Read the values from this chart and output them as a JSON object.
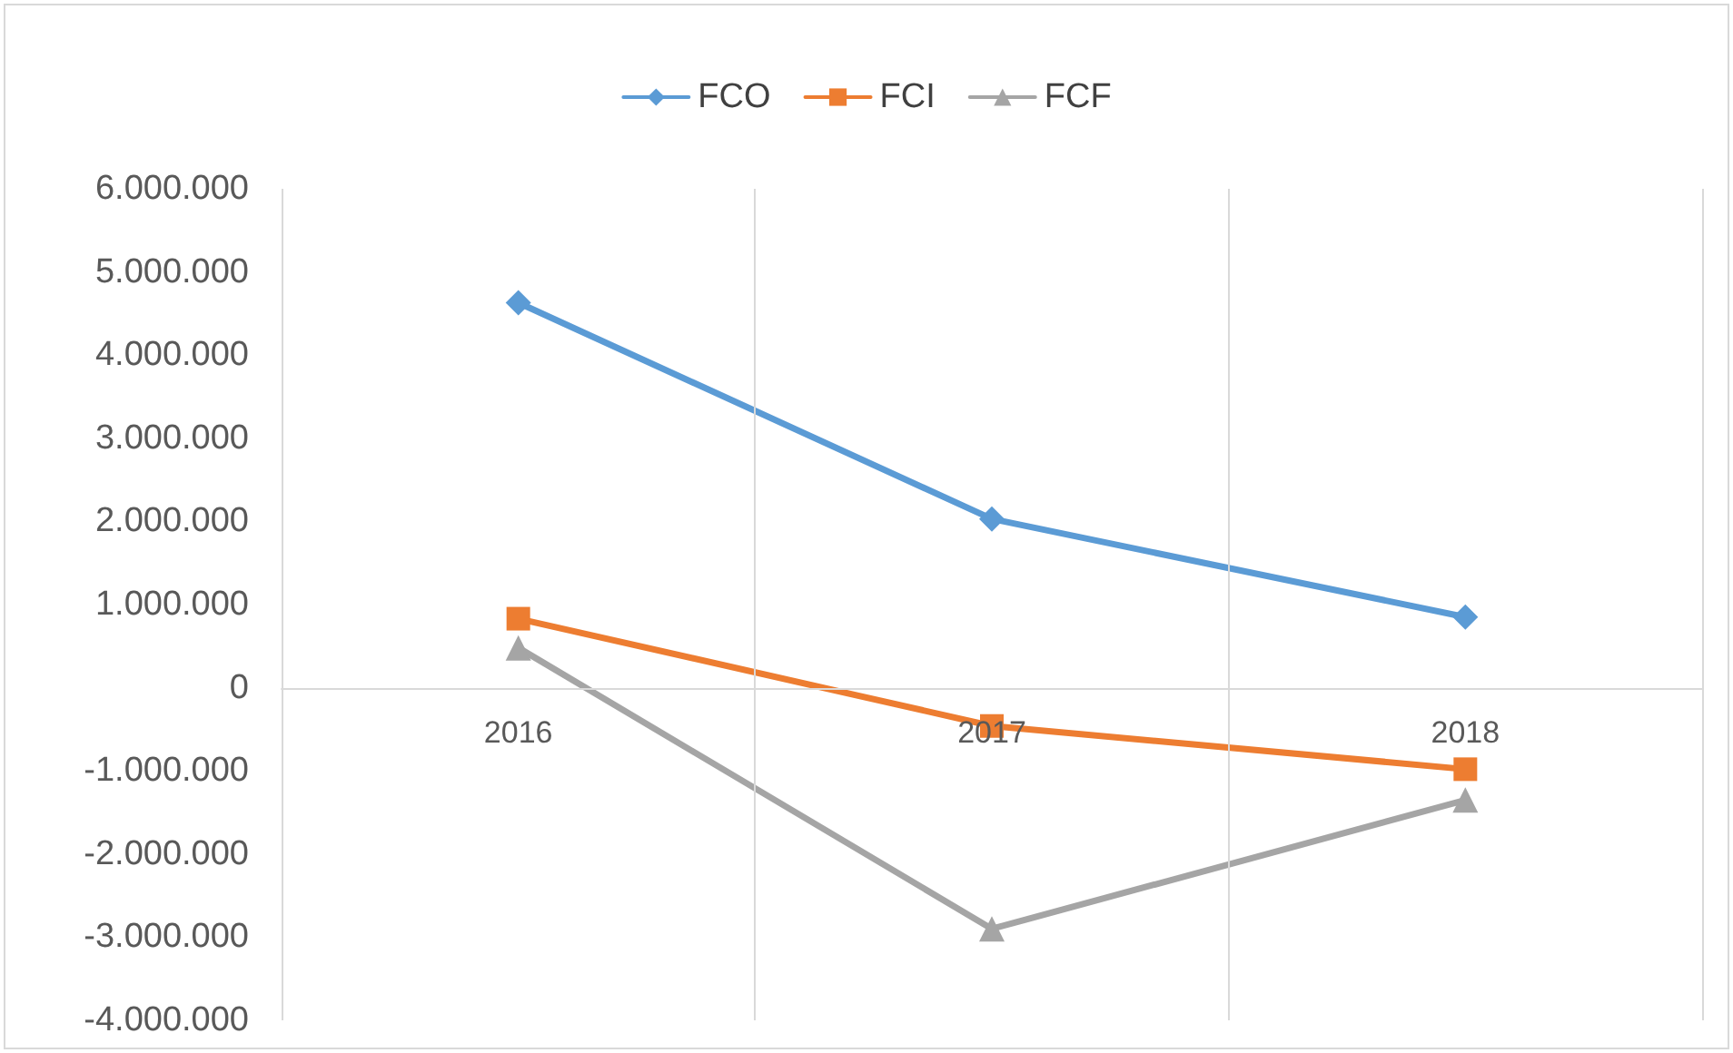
{
  "chart_data": {
    "type": "line",
    "categories": [
      "2016",
      "2017",
      "2018"
    ],
    "series": [
      {
        "name": "FCO",
        "color": "#5b9bd5",
        "marker": "diamond",
        "values": [
          4630000,
          2030000,
          850000
        ]
      },
      {
        "name": "FCI",
        "color": "#ed7d31",
        "marker": "square",
        "values": [
          830000,
          -460000,
          -980000
        ]
      },
      {
        "name": "FCF",
        "color": "#a5a5a5",
        "marker": "triangle",
        "values": [
          480000,
          -2900000,
          -1350000
        ]
      }
    ],
    "ylim": [
      -4000000,
      6000000
    ],
    "yticks": [
      {
        "value": -4000000,
        "label": "-4.000.000"
      },
      {
        "value": -3000000,
        "label": "-3.000.000"
      },
      {
        "value": -2000000,
        "label": "-2.000.000"
      },
      {
        "value": -1000000,
        "label": "-1.000.000"
      },
      {
        "value": 0,
        "label": "0"
      },
      {
        "value": 1000000,
        "label": "1.000.000"
      },
      {
        "value": 2000000,
        "label": "2.000.000"
      },
      {
        "value": 3000000,
        "label": "3.000.000"
      },
      {
        "value": 4000000,
        "label": "4.000.000"
      },
      {
        "value": 5000000,
        "label": "5.000.000"
      },
      {
        "value": 6000000,
        "label": "6.000.000"
      }
    ],
    "grid": "x",
    "legend": "top",
    "line_style": "solid"
  }
}
